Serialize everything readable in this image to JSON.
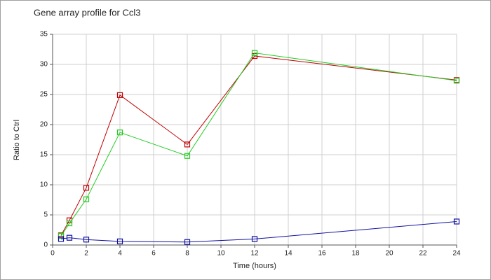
{
  "chart_data": {
    "type": "line",
    "title": "Gene array profile for Ccl3",
    "x_label": "Time (hours)",
    "y_label": "Ratio to Ctrl",
    "x": [
      0.5,
      1,
      2,
      4,
      8,
      12,
      24
    ],
    "series": [
      {
        "color": "#c00000",
        "values": [
          1.6,
          4.1,
          9.5,
          24.9,
          16.7,
          31.4,
          27.4
        ]
      },
      {
        "color": "#22cc22",
        "values": [
          1.5,
          3.6,
          7.6,
          18.7,
          14.8,
          31.9,
          27.3
        ]
      },
      {
        "color": "#1010a0",
        "values": [
          1.0,
          1.2,
          0.9,
          0.6,
          0.5,
          1.0,
          3.9
        ]
      }
    ],
    "xlim": [
      0,
      24
    ],
    "xticks": [
      0,
      2,
      4,
      6,
      8,
      10,
      12,
      14,
      16,
      18,
      20,
      22,
      24
    ],
    "ylim": [
      0,
      35
    ],
    "yticks": [
      0,
      5,
      10,
      15,
      20,
      25,
      30,
      35
    ],
    "grid": true,
    "marker": "square"
  }
}
